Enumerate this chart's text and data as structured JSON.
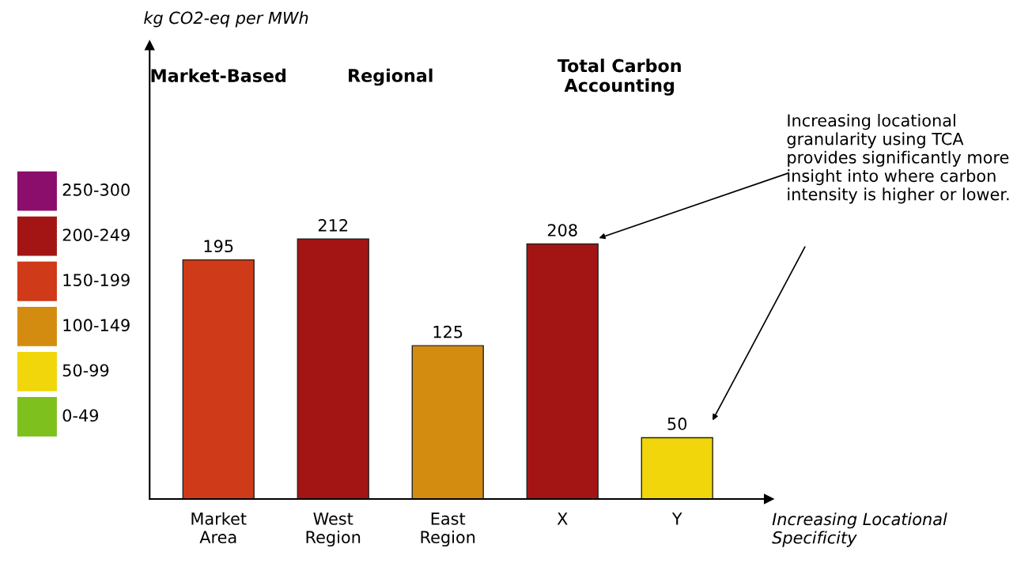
{
  "chart_data": {
    "type": "bar",
    "ylabel": "kg CO2-eq per MWh",
    "xlabel": "Increasing Locational Specificity",
    "categories": [
      "Market Area",
      "West Region",
      "East Region",
      "X",
      "Y"
    ],
    "stacked": true,
    "ylim": [
      0,
      370
    ],
    "tick_labels": "x",
    "data_labels": true,
    "legend": "left",
    "grid": false,
    "series": [
      {
        "name": "250-300",
        "color": "#8b0d6c",
        "values": [
          null,
          null,
          null,
          null,
          null
        ]
      },
      {
        "name": "200-249",
        "color": "#a31515",
        "values": [
          null,
          212,
          null,
          208,
          null
        ]
      },
      {
        "name": "150-199",
        "color": "#cf3a18",
        "values": [
          195,
          null,
          null,
          null,
          null
        ]
      },
      {
        "name": "100-149",
        "color": "#d48c10",
        "values": [
          null,
          null,
          125,
          null,
          null
        ]
      },
      {
        "name": "50-99",
        "color": "#f0d60a",
        "values": [
          null,
          null,
          null,
          null,
          50
        ]
      },
      {
        "name": "0-49",
        "color": "#7ec11f",
        "values": [
          null,
          null,
          null,
          null,
          null
        ]
      }
    ],
    "annotations": [
      "Market-Based",
      "Regional",
      "Total Carbon\nAccounting",
      "Increasing locational granularity using TCA provides significantly more insight into where carbon intensity is higher or lower."
    ]
  }
}
